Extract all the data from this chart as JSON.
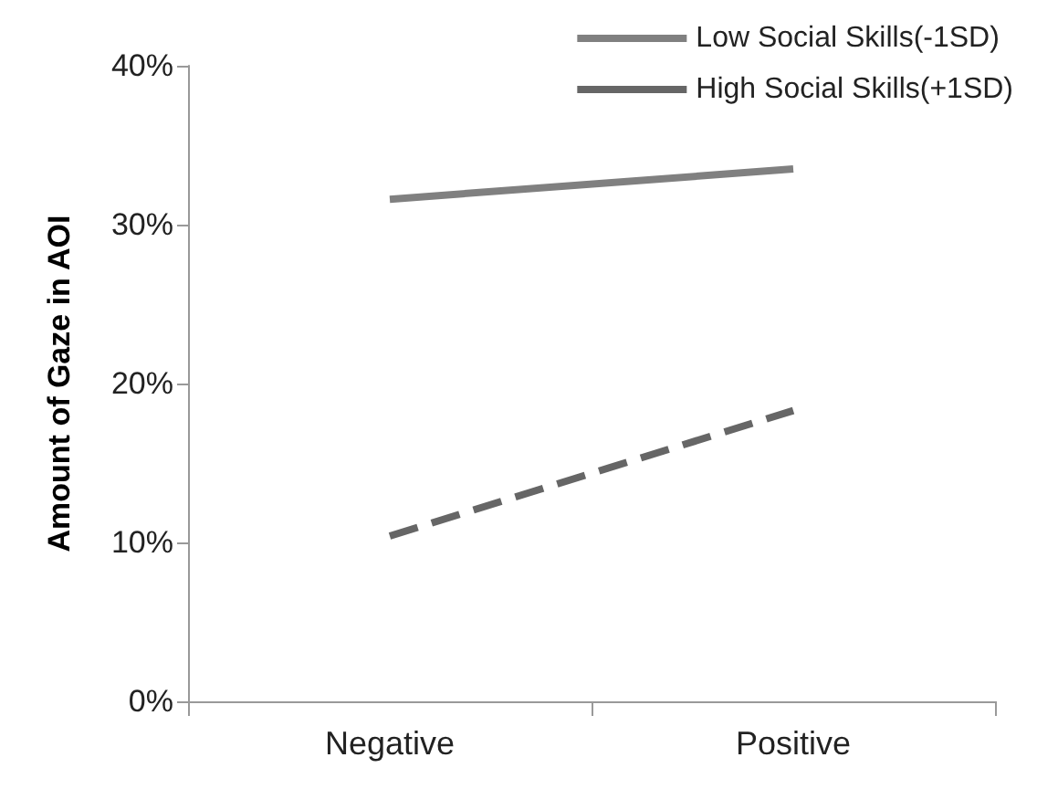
{
  "chart_data": {
    "type": "line",
    "ylabel": "Amount of Gaze in AOI",
    "categories": [
      "Negative",
      "Positive"
    ],
    "series": [
      {
        "name": "Low Social Skills(-1SD)",
        "color": "#808080",
        "values": [
          31.6,
          33.5
        ],
        "line_style": "solid"
      },
      {
        "name": "High Social Skills(+1SD)",
        "color": "#666666",
        "values": [
          10.4,
          18.3
        ],
        "line_style": "dashed"
      }
    ],
    "ylim": [
      0,
      40
    ],
    "yticks": [
      {
        "value": 0,
        "label": "0%"
      },
      {
        "value": 10,
        "label": "10%"
      },
      {
        "value": 20,
        "label": "20%"
      },
      {
        "value": 30,
        "label": "30%"
      },
      {
        "value": 40,
        "label": "40%"
      }
    ],
    "grid": false,
    "legend": "top right",
    "marker": "none"
  }
}
